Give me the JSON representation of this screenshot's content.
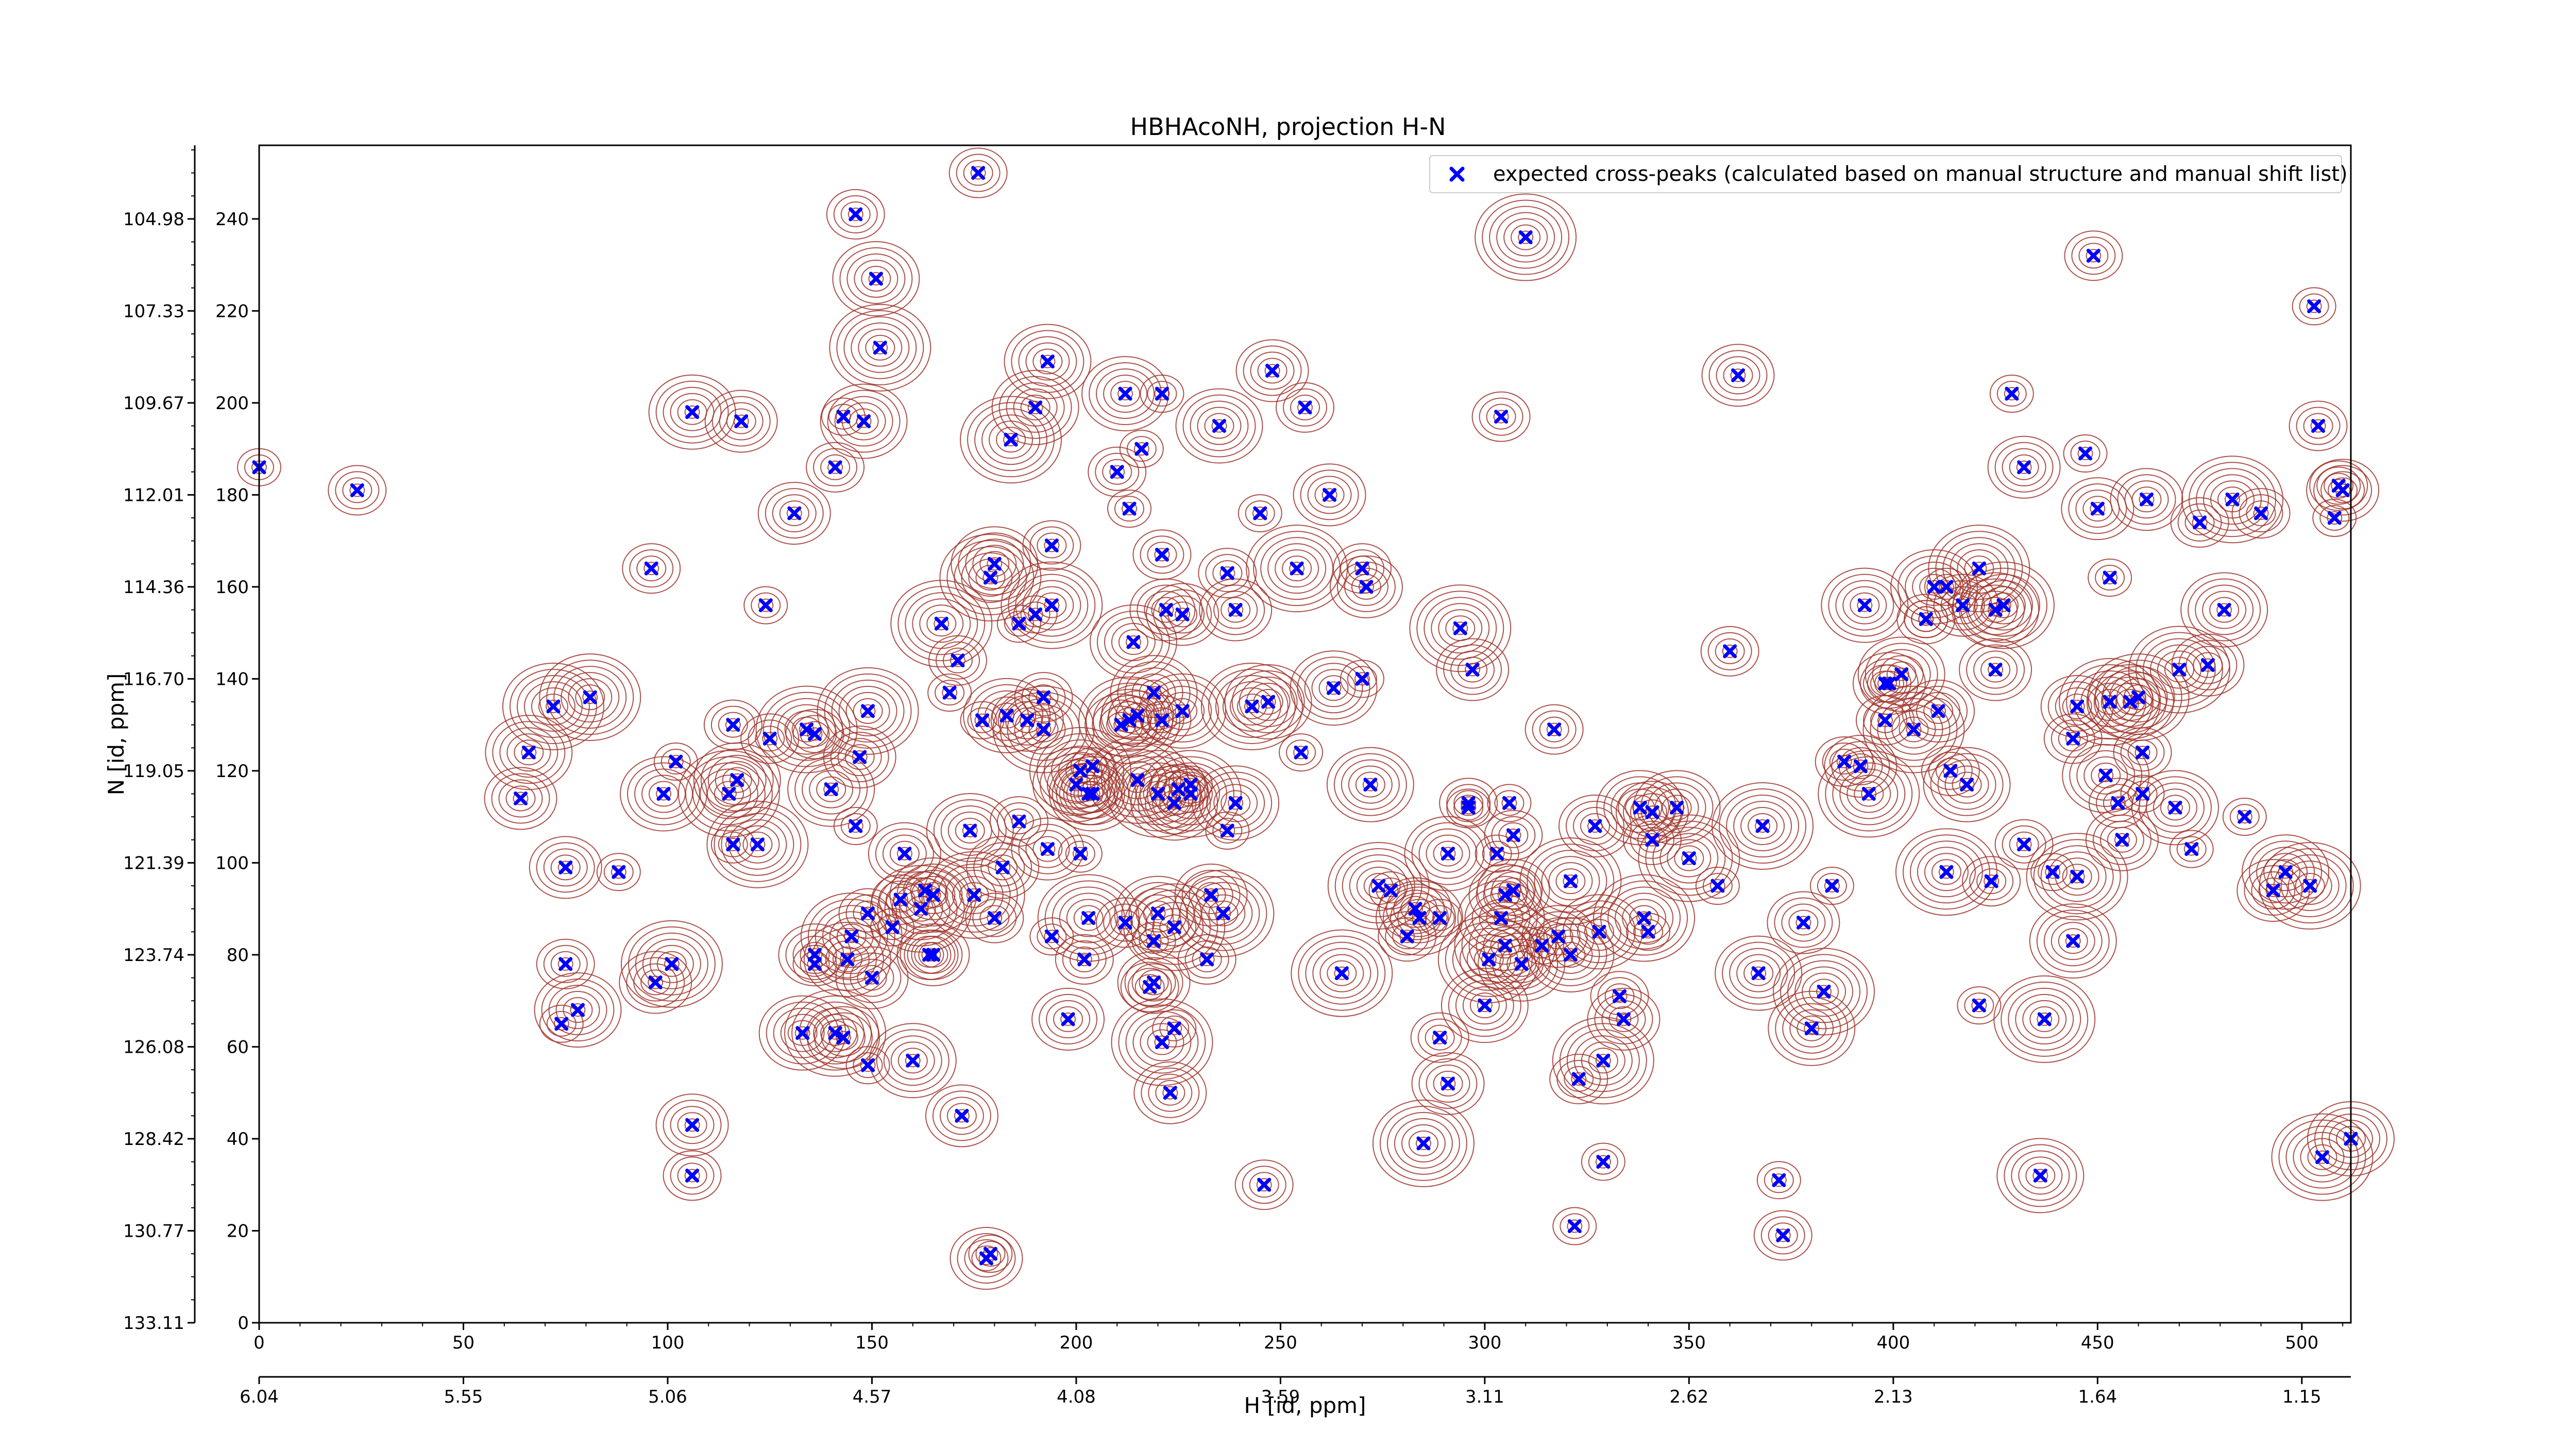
{
  "chart_data": {
    "type": "scatter",
    "title": "HBHAcoNH, projection H-N",
    "xlabel": "H [id, ppm]",
    "ylabel": "N [id, ppm]",
    "xlim": [
      0,
      512
    ],
    "ylim": [
      0,
      256
    ],
    "x_ticks": [
      "0",
      "50",
      "100",
      "150",
      "200",
      "250",
      "300",
      "350",
      "400",
      "450",
      "500"
    ],
    "x_ppm_ticks": [
      "6.04",
      "5.55",
      "5.06",
      "4.57",
      "4.08",
      "3.59",
      "3.11",
      "2.62",
      "2.13",
      "1.64",
      "1.15"
    ],
    "y_ticks": [
      "0",
      "20",
      "40",
      "60",
      "80",
      "100",
      "120",
      "140",
      "160",
      "180",
      "200",
      "220",
      "240"
    ],
    "y_ppm_ticks": [
      "133.11",
      "130.77",
      "128.42",
      "126.08",
      "123.74",
      "121.39",
      "119.05",
      "116.70",
      "114.36",
      "112.01",
      "109.67",
      "107.33",
      "104.98"
    ],
    "legend_position": "top-right",
    "grid": false,
    "colors": {
      "points": "#0000ff",
      "positive_contours": "#a0342a",
      "negative_contours": "#2e8b57"
    },
    "series": [
      {
        "name": "expected cross-peaks (calculated based on manual structure and manual shift list)",
        "marker": "x",
        "points": [
          [
            0,
            186
          ],
          [
            24,
            181
          ],
          [
            64,
            114
          ],
          [
            66,
            124
          ],
          [
            72,
            134
          ],
          [
            74,
            65
          ],
          [
            75,
            78
          ],
          [
            75,
            99
          ],
          [
            78,
            68
          ],
          [
            81,
            136
          ],
          [
            88,
            98
          ],
          [
            96,
            164
          ],
          [
            97,
            74
          ],
          [
            99,
            115
          ],
          [
            101,
            78
          ],
          [
            102,
            122
          ],
          [
            106,
            32
          ],
          [
            106,
            43
          ],
          [
            106,
            198
          ],
          [
            115,
            115
          ],
          [
            116,
            104
          ],
          [
            116,
            130
          ],
          [
            118,
            196
          ],
          [
            117,
            118
          ],
          [
            122,
            104
          ],
          [
            124,
            156
          ],
          [
            125,
            127
          ],
          [
            131,
            176
          ],
          [
            133,
            63
          ],
          [
            134,
            129
          ],
          [
            136,
            78
          ],
          [
            136,
            128
          ],
          [
            136,
            80
          ],
          [
            140,
            116
          ],
          [
            141,
            63
          ],
          [
            143,
            197
          ],
          [
            141,
            186
          ],
          [
            143,
            62
          ],
          [
            144,
            79
          ],
          [
            145,
            84
          ],
          [
            146,
            108
          ],
          [
            146,
            241
          ],
          [
            147,
            123
          ],
          [
            148,
            196
          ],
          [
            149,
            133
          ],
          [
            149,
            56
          ],
          [
            149,
            89
          ],
          [
            150,
            75
          ],
          [
            151,
            227
          ],
          [
            152,
            212
          ],
          [
            155,
            86
          ],
          [
            157,
            92
          ],
          [
            158,
            102
          ],
          [
            160,
            57
          ],
          [
            162,
            90
          ],
          [
            163,
            94
          ],
          [
            164,
            80
          ],
          [
            165,
            80
          ],
          [
            165,
            93
          ],
          [
            167,
            152
          ],
          [
            169,
            137
          ],
          [
            171,
            144
          ],
          [
            172,
            45
          ],
          [
            174,
            107
          ],
          [
            175,
            93
          ],
          [
            177,
            131
          ],
          [
            176,
            250
          ],
          [
            178,
            14
          ],
          [
            180,
            165
          ],
          [
            179,
            162
          ],
          [
            179,
            15
          ],
          [
            180,
            88
          ],
          [
            182,
            99
          ],
          [
            183,
            132
          ],
          [
            184,
            192
          ],
          [
            186,
            152
          ],
          [
            186,
            109
          ],
          [
            188,
            131
          ],
          [
            190,
            199
          ],
          [
            192,
            129
          ],
          [
            190,
            154
          ],
          [
            192,
            136
          ],
          [
            193,
            103
          ],
          [
            193,
            209
          ],
          [
            194,
            156
          ],
          [
            194,
            84
          ],
          [
            194,
            169
          ],
          [
            198,
            66
          ],
          [
            200,
            117
          ],
          [
            201,
            120
          ],
          [
            201,
            102
          ],
          [
            202,
            79
          ],
          [
            203,
            115
          ],
          [
            204,
            115
          ],
          [
            203,
            88
          ],
          [
            204,
            121
          ],
          [
            210,
            185
          ],
          [
            211,
            130
          ],
          [
            212,
            202
          ],
          [
            213,
            131
          ],
          [
            213,
            177
          ],
          [
            212,
            87
          ],
          [
            215,
            132
          ],
          [
            214,
            148
          ],
          [
            215,
            118
          ],
          [
            216,
            190
          ],
          [
            218,
            73
          ],
          [
            219,
            74
          ],
          [
            219,
            137
          ],
          [
            220,
            115
          ],
          [
            219,
            83
          ],
          [
            221,
            131
          ],
          [
            222,
            155
          ],
          [
            220,
            89
          ],
          [
            221,
            61
          ],
          [
            221,
            202
          ],
          [
            221,
            167
          ],
          [
            223,
            50
          ],
          [
            224,
            113
          ],
          [
            224,
            86
          ],
          [
            224,
            64
          ],
          [
            225,
            116
          ],
          [
            226,
            154
          ],
          [
            226,
            133
          ],
          [
            228,
            115
          ],
          [
            228,
            117
          ],
          [
            232,
            79
          ],
          [
            233,
            93
          ],
          [
            235,
            195
          ],
          [
            236,
            89
          ],
          [
            237,
            107
          ],
          [
            237,
            163
          ],
          [
            239,
            155
          ],
          [
            239,
            113
          ],
          [
            243,
            134
          ],
          [
            245,
            176
          ],
          [
            246,
            30
          ],
          [
            248,
            207
          ],
          [
            247,
            135
          ],
          [
            254,
            164
          ],
          [
            255,
            124
          ],
          [
            256,
            199
          ],
          [
            262,
            180
          ],
          [
            263,
            138
          ],
          [
            265,
            76
          ],
          [
            270,
            140
          ],
          [
            270,
            164
          ],
          [
            271,
            160
          ],
          [
            272,
            117
          ],
          [
            274,
            95
          ],
          [
            277,
            94
          ],
          [
            281,
            84
          ],
          [
            283,
            90
          ],
          [
            284,
            88
          ],
          [
            285,
            39
          ],
          [
            289,
            88
          ],
          [
            289,
            62
          ],
          [
            291,
            52
          ],
          [
            291,
            102
          ],
          [
            294,
            151
          ],
          [
            296,
            112
          ],
          [
            296,
            113
          ],
          [
            297,
            142
          ],
          [
            300,
            69
          ],
          [
            301,
            79
          ],
          [
            303,
            102
          ],
          [
            304,
            197
          ],
          [
            305,
            93
          ],
          [
            304,
            88
          ],
          [
            305,
            82
          ],
          [
            306,
            113
          ],
          [
            307,
            106
          ],
          [
            307,
            94
          ],
          [
            309,
            78
          ],
          [
            310,
            236
          ],
          [
            314,
            82
          ],
          [
            317,
            129
          ],
          [
            318,
            84
          ],
          [
            321,
            80
          ],
          [
            321,
            96
          ],
          [
            322,
            21
          ],
          [
            323,
            53
          ],
          [
            327,
            108
          ],
          [
            328,
            85
          ],
          [
            329,
            57
          ],
          [
            329,
            35
          ],
          [
            333,
            71
          ],
          [
            334,
            66
          ],
          [
            338,
            112
          ],
          [
            339,
            88
          ],
          [
            340,
            85
          ],
          [
            341,
            105
          ],
          [
            341,
            111
          ],
          [
            347,
            112
          ],
          [
            350,
            101
          ],
          [
            357,
            95
          ],
          [
            360,
            146
          ],
          [
            362,
            206
          ],
          [
            367,
            76
          ],
          [
            368,
            108
          ],
          [
            372,
            31
          ],
          [
            373,
            19
          ],
          [
            378,
            87
          ],
          [
            380,
            64
          ],
          [
            383,
            72
          ],
          [
            385,
            95
          ],
          [
            388,
            122
          ],
          [
            392,
            121
          ],
          [
            393,
            156
          ],
          [
            394,
            115
          ],
          [
            398,
            139
          ],
          [
            398,
            131
          ],
          [
            399,
            139
          ],
          [
            402,
            141
          ],
          [
            405,
            129
          ],
          [
            408,
            153
          ],
          [
            408,
            153
          ],
          [
            411,
            133
          ],
          [
            410,
            160
          ],
          [
            413,
            98
          ],
          [
            413,
            160
          ],
          [
            414,
            120
          ],
          [
            417,
            156
          ],
          [
            418,
            117
          ],
          [
            421,
            164
          ],
          [
            421,
            69
          ],
          [
            424,
            96
          ],
          [
            425,
            142
          ],
          [
            425,
            155
          ],
          [
            427,
            156
          ],
          [
            429,
            202
          ],
          [
            432,
            104
          ],
          [
            432,
            186
          ],
          [
            436,
            32
          ],
          [
            437,
            66
          ],
          [
            439,
            98
          ],
          [
            444,
            127
          ],
          [
            445,
            134
          ],
          [
            444,
            83
          ],
          [
            445,
            97
          ],
          [
            447,
            189
          ],
          [
            449,
            232
          ],
          [
            450,
            177
          ],
          [
            452,
            119
          ],
          [
            453,
            135
          ],
          [
            453,
            162
          ],
          [
            455,
            113
          ],
          [
            456,
            105
          ],
          [
            458,
            135
          ],
          [
            460,
            136
          ],
          [
            461,
            115
          ],
          [
            461,
            124
          ],
          [
            462,
            179
          ],
          [
            469,
            112
          ],
          [
            470,
            142
          ],
          [
            473,
            103
          ],
          [
            475,
            174
          ],
          [
            477,
            143
          ],
          [
            481,
            155
          ],
          [
            483,
            179
          ],
          [
            486,
            110
          ],
          [
            490,
            176
          ],
          [
            493,
            94
          ],
          [
            496,
            98
          ],
          [
            502,
            95
          ],
          [
            503,
            221
          ],
          [
            504,
            195
          ],
          [
            510,
            181
          ],
          [
            512,
            40
          ],
          [
            505,
            36
          ],
          [
            508,
            175
          ],
          [
            509,
            182
          ]
        ]
      }
    ]
  }
}
